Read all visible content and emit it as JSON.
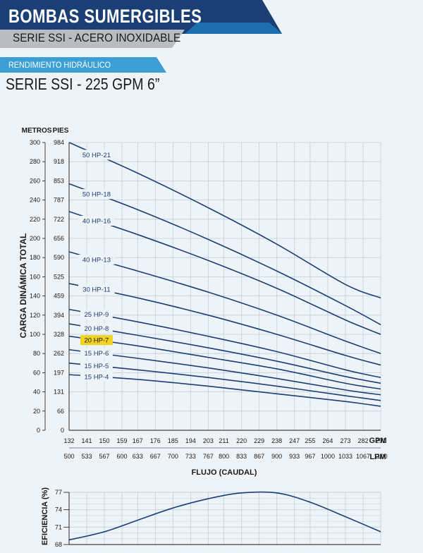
{
  "header": {
    "title": "BOMBAS SUMERGIBLES",
    "subtitle": "SERIE SSI - ACERO INOXIDABLE",
    "section_label": "RENDIMIENTO HIDRÁULICO",
    "series_title": "SERIE SSI - 225 GPM 6”"
  },
  "colors": {
    "navy": "#1b3f74",
    "blue": "#1e6fb0",
    "light_blue": "#3b9fd6",
    "grey": "#b9bcc0",
    "curve": "#1b3f74",
    "highlight": "#f1d21f",
    "grid": "#c2cfdc"
  },
  "chart_data": [
    {
      "type": "line",
      "ylabel": "CARGA DINÁMICA TOTAL",
      "xlabel": "FLUJO (CAUDAL)",
      "y_units": [
        "METROS",
        "PIES"
      ],
      "x_units": [
        "GPM",
        "LPM"
      ],
      "ylim": [
        0,
        300
      ],
      "xlim": [
        132,
        291
      ],
      "grid": true,
      "y_ticks_metros": [
        0,
        20,
        40,
        60,
        80,
        100,
        120,
        140,
        160,
        180,
        200,
        220,
        240,
        260,
        280,
        300
      ],
      "y_ticks_pies": [
        0,
        66,
        131,
        197,
        262,
        328,
        394,
        459,
        525,
        590,
        656,
        722,
        787,
        853,
        918,
        984
      ],
      "x_ticks_gpm": [
        132,
        141,
        150,
        159,
        167,
        176,
        185,
        194,
        203,
        211,
        220,
        229,
        238,
        247,
        255,
        264,
        273,
        282,
        291
      ],
      "x_ticks_lpm": [
        500,
        533,
        567,
        600,
        633,
        667,
        700,
        733,
        767,
        800,
        833,
        867,
        900,
        933,
        967,
        1000,
        1033,
        1067,
        1100
      ],
      "series": [
        {
          "name": "50 HP-21",
          "x": [
            132,
            167,
            203,
            238,
            273,
            291
          ],
          "y": [
            300,
            268,
            232,
            194,
            152,
            138
          ]
        },
        {
          "name": "50 HP-18",
          "x": [
            132,
            167,
            203,
            238,
            273,
            291
          ],
          "y": [
            257,
            230,
            199,
            166,
            130,
            110
          ]
        },
        {
          "name": "40 HP-16",
          "x": [
            132,
            167,
            203,
            238,
            273,
            291
          ],
          "y": [
            228,
            204,
            177,
            148,
            115,
            100
          ]
        },
        {
          "name": "40 HP-13",
          "x": [
            132,
            167,
            203,
            238,
            273,
            291
          ],
          "y": [
            186,
            166,
            144,
            120,
            93,
            80
          ]
        },
        {
          "name": "30 HP-11",
          "x": [
            132,
            167,
            203,
            238,
            273,
            291
          ],
          "y": [
            153,
            138,
            120,
            100,
            78,
            68
          ]
        },
        {
          "name": "25 HP-9",
          "x": [
            132,
            167,
            203,
            238,
            273,
            291
          ],
          "y": [
            126,
            113,
            98,
            82,
            63,
            55
          ]
        },
        {
          "name": "20 HP-8",
          "x": [
            132,
            167,
            203,
            238,
            273,
            291
          ],
          "y": [
            111,
            99,
            86,
            72,
            56,
            49
          ]
        },
        {
          "name": "20 HP-7",
          "x": [
            132,
            167,
            203,
            238,
            273,
            291
          ],
          "y": [
            98,
            88,
            76,
            64,
            49,
            43
          ]
        },
        {
          "name": "15 HP-6",
          "x": [
            132,
            167,
            203,
            238,
            273,
            291
          ],
          "y": [
            84,
            75,
            65,
            54,
            42,
            37
          ]
        },
        {
          "name": "15 HP-5",
          "x": [
            132,
            167,
            203,
            238,
            273,
            291
          ],
          "y": [
            70,
            63,
            55,
            46,
            36,
            31
          ]
        },
        {
          "name": "15 HP-4",
          "x": [
            132,
            167,
            203,
            238,
            273,
            291
          ],
          "y": [
            58,
            53,
            46,
            38,
            30,
            25
          ]
        }
      ],
      "highlighted_series": "20 HP-7"
    },
    {
      "type": "line",
      "ylabel": "EFICIENCIA (%)",
      "ylim": [
        68,
        77
      ],
      "y_ticks": [
        68,
        71,
        74,
        77
      ],
      "xlim": [
        132,
        291
      ],
      "grid": true,
      "series": [
        {
          "x": [
            132,
            150,
            167,
            185,
            203,
            220,
            238,
            255,
            273,
            291
          ],
          "y": [
            68.8,
            70.2,
            72.2,
            74.3,
            75.9,
            76.9,
            76.9,
            75.3,
            72.8,
            70.2
          ]
        }
      ]
    }
  ]
}
